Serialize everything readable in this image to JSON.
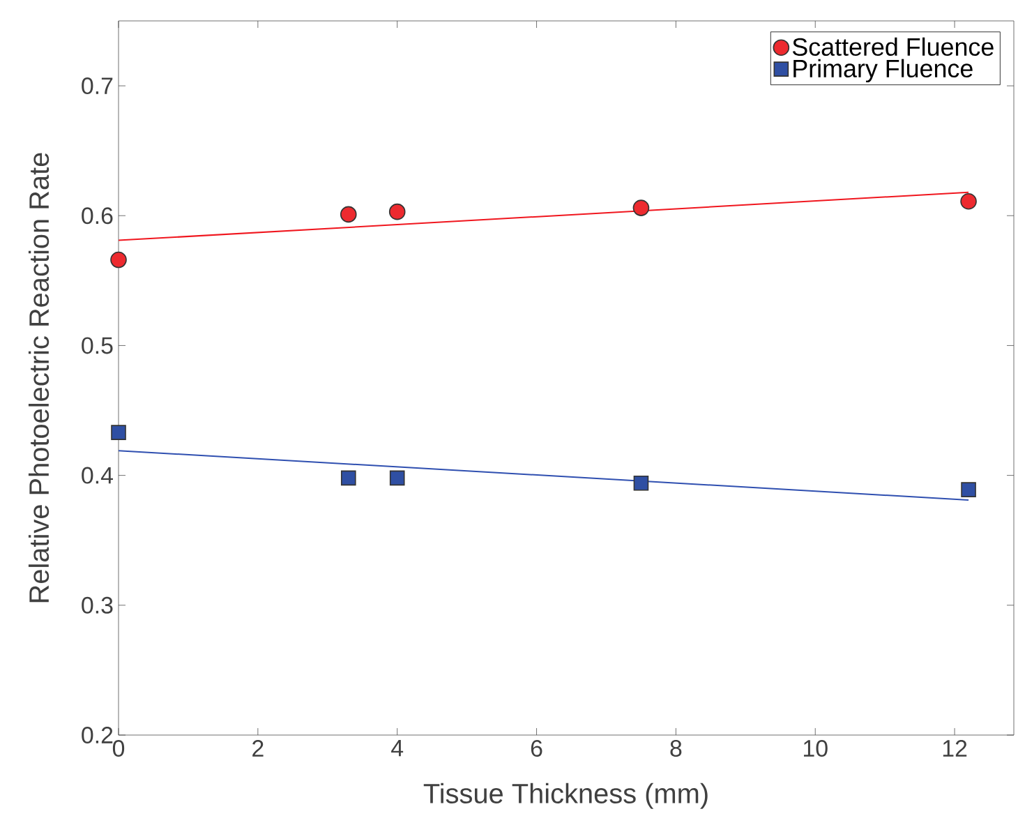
{
  "chart_data": {
    "type": "scatter",
    "xlabel": "Tissue Thickness (mm)",
    "ylabel": "Relative Photoelectric Reaction Rate",
    "xlim": [
      0,
      12.85
    ],
    "ylim": [
      0.2,
      0.75
    ],
    "xticks": [
      0,
      2,
      4,
      6,
      8,
      10,
      12
    ],
    "yticks": [
      0.2,
      0.3,
      0.4,
      0.5,
      0.6,
      0.7
    ],
    "legend": "top right",
    "series": [
      {
        "name": "Scattered Fluence",
        "marker": "circle",
        "color": "#ed2a2f",
        "x": [
          0,
          3.3,
          4,
          7.5,
          12.2
        ],
        "values": [
          0.566,
          0.601,
          0.603,
          0.606,
          0.611
        ]
      },
      {
        "name": "Primary Fluence",
        "marker": "square",
        "color": "#2f4fa3",
        "x": [
          0,
          3.3,
          4,
          7.5,
          12.2
        ],
        "values": [
          0.433,
          0.398,
          0.398,
          0.394,
          0.389
        ]
      },
      {
        "type": "line",
        "color": "#f0161e",
        "x": [
          0,
          12.2
        ],
        "values": [
          0.581,
          0.618
        ]
      },
      {
        "type": "line",
        "color": "#2f4fb0",
        "x": [
          0,
          12.2
        ],
        "values": [
          0.419,
          0.381
        ]
      }
    ]
  }
}
